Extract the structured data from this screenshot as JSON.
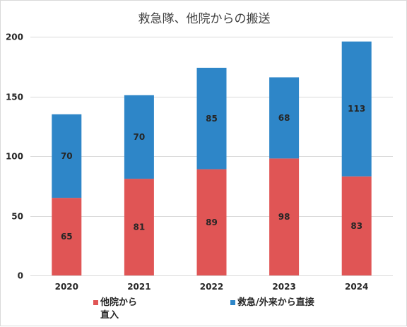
{
  "chart_data": {
    "type": "bar",
    "stacked": true,
    "title": "救急隊、他院からの搬送",
    "categories": [
      "2020",
      "2021",
      "2022",
      "2023",
      "2024"
    ],
    "series": [
      {
        "name": "他院から直入",
        "color": "#e05555",
        "values": [
          65,
          81,
          89,
          98,
          83
        ]
      },
      {
        "name": "救急/外来から直接",
        "color": "#2e86c8",
        "values": [
          70,
          70,
          85,
          68,
          113
        ]
      }
    ],
    "ylim": [
      0,
      200
    ],
    "yticks": [
      0,
      50,
      100,
      150,
      200
    ],
    "grid": true,
    "legend_position": "bottom",
    "xlabel": "",
    "ylabel": ""
  }
}
